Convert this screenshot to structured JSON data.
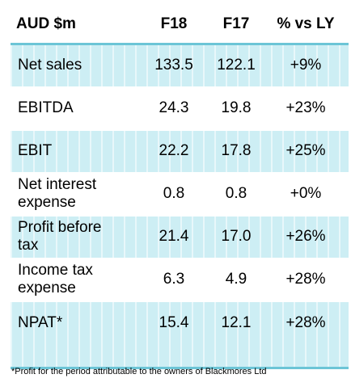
{
  "table": {
    "header": {
      "label": "AUD $m",
      "f18": "F18",
      "f17": "F17",
      "vs_ly": "% vs LY"
    },
    "rows": [
      {
        "label_line1": "Net sales",
        "label_line2": "",
        "f18": "133.5",
        "f17": "122.1",
        "vs_ly": "+9%"
      },
      {
        "label_line1": "EBITDA",
        "label_line2": "",
        "f18": "24.3",
        "f17": "19.8",
        "vs_ly": "+23%"
      },
      {
        "label_line1": "EBIT",
        "label_line2": "",
        "f18": "22.2",
        "f17": "17.8",
        "vs_ly": "+25%"
      },
      {
        "label_line1": "Net interest",
        "label_line2": "expense",
        "f18": "0.8",
        "f17": "0.8",
        "vs_ly": "+0%"
      },
      {
        "label_line1": "Profit before",
        "label_line2": "tax",
        "f18": "21.4",
        "f17": "17.0",
        "vs_ly": "+26%"
      },
      {
        "label_line1": "Income tax",
        "label_line2": "expense",
        "f18": "6.3",
        "f17": "4.9",
        "vs_ly": "+28%"
      },
      {
        "label_line1": "NPAT*",
        "label_line2": "",
        "f18": "15.4",
        "f17": "12.1",
        "vs_ly": "+28%"
      }
    ]
  },
  "footnote": "*Profit for the period attributable to the owners of Blackmores Ltd",
  "colors": {
    "accent_line": "#6cc5d6",
    "row_shade": "#cdeef4"
  }
}
